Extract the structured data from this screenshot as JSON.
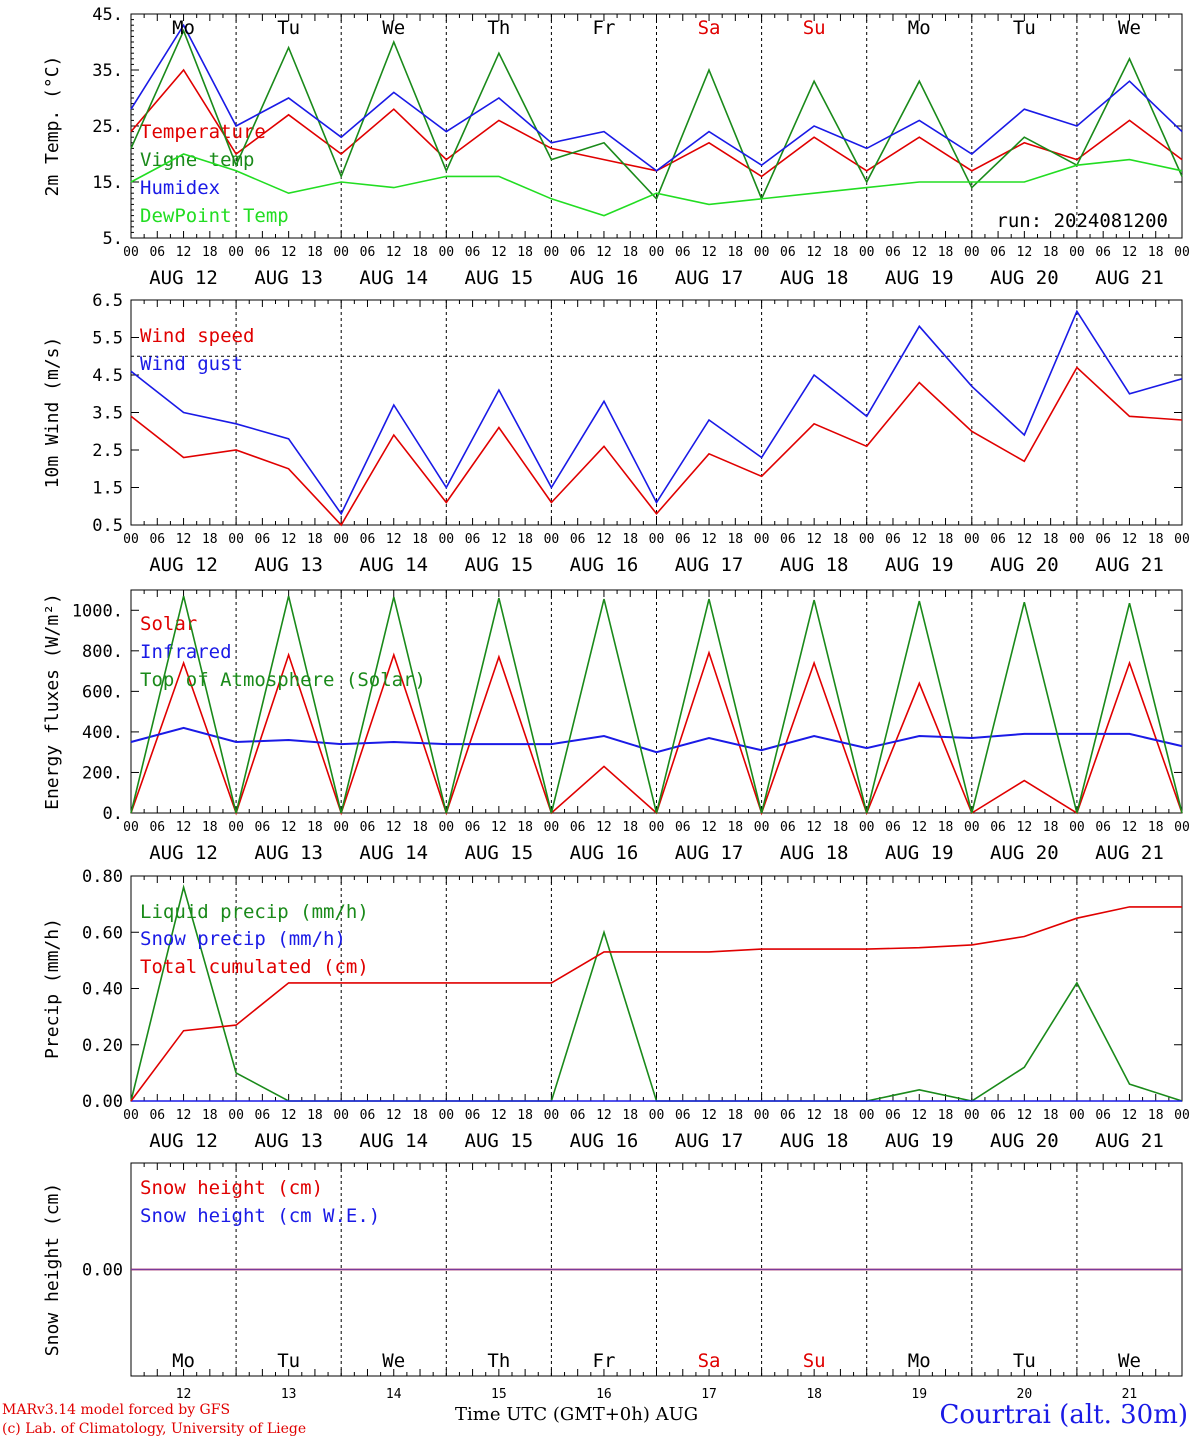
{
  "days": [
    "Mo",
    "Tu",
    "We",
    "Th",
    "Fr",
    "Sa",
    "Su",
    "Mo",
    "Tu",
    "We"
  ],
  "weekend_days": [
    "Sa",
    "Su"
  ],
  "dates": [
    "AUG 12",
    "AUG 13",
    "AUG 14",
    "AUG 15",
    "AUG 16",
    "AUG 17",
    "AUG 18",
    "AUG 19",
    "AUG 20",
    "AUG 21"
  ],
  "day_numbers": [
    "12",
    "13",
    "14",
    "15",
    "16",
    "17",
    "18",
    "19",
    "20",
    "21"
  ],
  "hour_ticks": [
    "00",
    "06",
    "12",
    "18"
  ],
  "final_hour_tick": "00",
  "run_label": "run: 2024081200",
  "footer": {
    "model": "MARv3.14 model forced by GFS",
    "lab": "(c) Lab. of Climatology, University of Liege",
    "xlabel": "Time UTC (GMT+0h) AUG",
    "station": "Courtrai (alt. 30m)"
  },
  "colors": {
    "red": "#e00000",
    "green": "#1a8a1a",
    "blue": "#1a1ae6",
    "lime": "#22dd22",
    "purple": "#7a3a9a",
    "weekend": "#e00000"
  },
  "chart_data": [
    {
      "type": "line",
      "ylabel": "2m Temp. (°C)",
      "ylim": [
        5,
        45
      ],
      "yticks": [
        "5.",
        "15.",
        "25.",
        "35.",
        "45."
      ],
      "x_hours": [
        0,
        12,
        24,
        36,
        48,
        60,
        72,
        84,
        96,
        108,
        120,
        132,
        144,
        156,
        168,
        180,
        192,
        204,
        216,
        228,
        240
      ],
      "series": [
        {
          "name": "Temperature",
          "color": "red",
          "values": [
            24,
            35,
            20,
            27,
            20,
            28,
            19,
            26,
            21,
            19,
            17,
            22,
            16,
            23,
            17,
            23,
            17,
            22,
            19,
            26,
            19
          ]
        },
        {
          "name": "Vigne temp",
          "color": "green",
          "values": [
            21,
            42,
            18,
            39,
            16,
            40,
            17,
            38,
            19,
            22,
            12,
            35,
            12,
            33,
            15,
            33,
            14,
            23,
            18,
            37,
            16
          ]
        },
        {
          "name": "Humidex",
          "color": "blue",
          "values": [
            28,
            43,
            25,
            30,
            23,
            31,
            24,
            30,
            22,
            24,
            17,
            24,
            18,
            25,
            21,
            26,
            20,
            28,
            25,
            33,
            24
          ]
        },
        {
          "name": "DewPoint Temp",
          "color": "lime",
          "values": [
            15,
            20,
            17,
            13,
            15,
            14,
            16,
            16,
            12,
            9,
            13,
            11,
            12,
            13,
            14,
            15,
            15,
            15,
            18,
            19,
            17
          ]
        }
      ]
    },
    {
      "type": "line",
      "ylabel": "10m Wind (m/s)",
      "ylim": [
        0.5,
        6.5
      ],
      "yticks": [
        "0.5",
        "1.5",
        "2.5",
        "3.5",
        "4.5",
        "5.5",
        "6.5"
      ],
      "x_hours": [
        0,
        12,
        24,
        36,
        48,
        60,
        72,
        84,
        96,
        108,
        120,
        132,
        144,
        156,
        168,
        180,
        192,
        204,
        216,
        228,
        240
      ],
      "series": [
        {
          "name": "Wind speed",
          "color": "red",
          "values": [
            3.4,
            2.3,
            2.5,
            2.0,
            0.5,
            2.9,
            1.1,
            3.1,
            1.1,
            2.6,
            0.8,
            2.4,
            1.8,
            3.2,
            2.6,
            4.3,
            3.0,
            2.2,
            4.7,
            3.4,
            3.3
          ]
        },
        {
          "name": "Wind gust",
          "color": "blue",
          "values": [
            4.6,
            3.5,
            3.2,
            2.8,
            0.8,
            3.7,
            1.5,
            4.1,
            1.5,
            3.8,
            1.1,
            3.3,
            2.3,
            4.5,
            3.4,
            5.8,
            4.2,
            2.9,
            6.2,
            4.0,
            4.4
          ]
        }
      ]
    },
    {
      "type": "line",
      "ylabel": "Energy fluxes (W/m²)",
      "ylim": [
        0,
        1100
      ],
      "yticks": [
        "0.",
        "200.",
        "400.",
        "600.",
        "800.",
        "1000."
      ],
      "x_hours": [
        0,
        12,
        24,
        36,
        48,
        60,
        72,
        84,
        96,
        108,
        120,
        132,
        144,
        156,
        168,
        180,
        192,
        204,
        216,
        228,
        240
      ],
      "series": [
        {
          "name": "Solar",
          "color": "red",
          "values": [
            0,
            740,
            0,
            780,
            0,
            780,
            0,
            770,
            0,
            230,
            0,
            790,
            0,
            740,
            0,
            640,
            0,
            160,
            0,
            740,
            0
          ]
        },
        {
          "name": "Infrared",
          "color": "blue",
          "values": [
            350,
            420,
            350,
            360,
            340,
            350,
            340,
            340,
            340,
            380,
            300,
            370,
            310,
            380,
            320,
            380,
            370,
            390,
            390,
            390,
            330
          ]
        },
        {
          "name": "Top of Atmosphere (Solar)",
          "color": "green",
          "values": [
            0,
            1070,
            0,
            1070,
            0,
            1065,
            0,
            1060,
            0,
            1055,
            0,
            1055,
            0,
            1050,
            0,
            1045,
            0,
            1040,
            0,
            1035,
            0
          ]
        }
      ]
    },
    {
      "type": "line",
      "ylabel": "Precip (mm/h)",
      "ylim": [
        0,
        0.8
      ],
      "yticks": [
        "0.00",
        "0.20",
        "0.40",
        "0.60",
        "0.80"
      ],
      "x_hours": [
        0,
        12,
        24,
        36,
        48,
        60,
        72,
        84,
        96,
        108,
        120,
        132,
        144,
        156,
        168,
        180,
        192,
        204,
        216,
        228,
        240
      ],
      "series": [
        {
          "name": "Liquid precip (mm/h)",
          "color": "green",
          "values": [
            0,
            0.76,
            0.1,
            0,
            0,
            0,
            0,
            0,
            0,
            0.6,
            0,
            0,
            0,
            0,
            0,
            0.04,
            0,
            0.12,
            0.42,
            0.06,
            0
          ]
        },
        {
          "name": "Snow precip (mm/h)",
          "color": "blue",
          "values": [
            0,
            0,
            0,
            0,
            0,
            0,
            0,
            0,
            0,
            0,
            0,
            0,
            0,
            0,
            0,
            0,
            0,
            0,
            0,
            0,
            0
          ]
        },
        {
          "name": "Total cumulated (cm)",
          "color": "red",
          "values": [
            0,
            0.25,
            0.27,
            0.42,
            0.42,
            0.42,
            0.42,
            0.42,
            0.42,
            0.53,
            0.53,
            0.53,
            0.54,
            0.54,
            0.54,
            0.545,
            0.555,
            0.585,
            0.65,
            0.69,
            0.69
          ]
        }
      ]
    },
    {
      "type": "line",
      "ylabel": "Snow height (cm)",
      "ylim": [
        -1,
        1
      ],
      "yticks": [
        "0.00"
      ],
      "x_hours": [
        0,
        240
      ],
      "series": [
        {
          "name": "Snow height (cm)",
          "color": "red",
          "values": [
            0,
            0
          ]
        },
        {
          "name": "Snow height (cm W.E.)",
          "color": "blue",
          "values": [
            0,
            0
          ]
        }
      ]
    }
  ]
}
